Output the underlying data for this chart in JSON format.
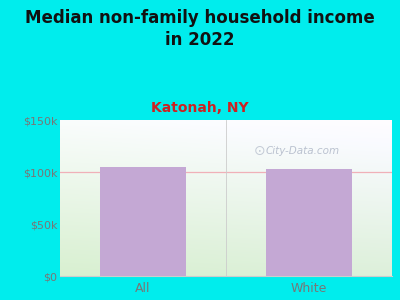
{
  "title": "Median non-family household income\nin 2022",
  "subtitle": "Katonah, NY",
  "categories": [
    "All",
    "White"
  ],
  "values": [
    105000,
    103000
  ],
  "bar_color": "#C4A8D4",
  "ylim": [
    0,
    150000
  ],
  "yticks": [
    0,
    50000,
    100000,
    150000
  ],
  "ytick_labels": [
    "$0",
    "$50k",
    "$100k",
    "$150k"
  ],
  "background_outer": "#00EDED",
  "background_inner_top": "#F5FAF5",
  "background_inner_bottom": "#D8F0D0",
  "title_fontsize": 12,
  "subtitle_fontsize": 10,
  "subtitle_color": "#CC2222",
  "title_color": "#111111",
  "tick_label_color": "#777777",
  "watermark": "City-Data.com",
  "grid_color": "#F0B0B8",
  "spine_color": "#CCCCCC"
}
